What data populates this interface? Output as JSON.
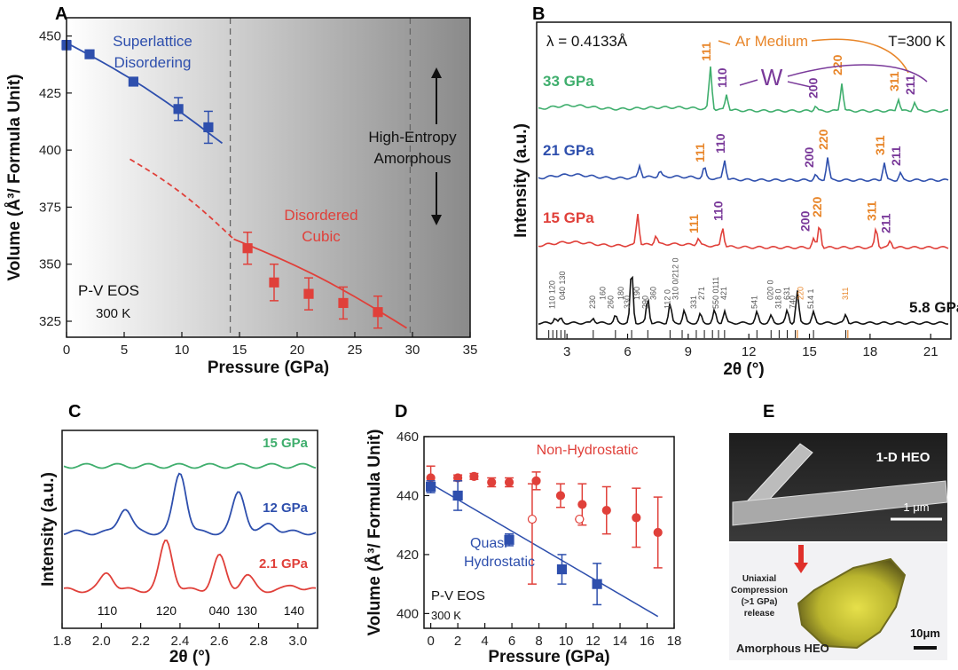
{
  "panels": {
    "a": "A",
    "b": "B",
    "c": "C",
    "d": "D",
    "e": "E"
  },
  "chart_data": [
    {
      "id": "A",
      "type": "scatter",
      "xlabel": "Pressure (GPa)",
      "ylabel": "Volume (Å³/ Formula Unit)",
      "xlim": [
        0,
        35
      ],
      "ylim": [
        318,
        458
      ],
      "xticks": [
        "0",
        "5",
        "10",
        "15",
        "20",
        "25",
        "30",
        "35"
      ],
      "yticks": [
        "325",
        "350",
        "375",
        "400",
        "425",
        "450"
      ],
      "series": [
        {
          "name": "Superlattice Disordering",
          "color": "#2e4fad",
          "x": [
            0,
            2,
            5.8,
            9.7,
            12.3
          ],
          "y": [
            446,
            442,
            430,
            418,
            410
          ],
          "err": [
            2,
            1,
            1.5,
            5,
            7
          ]
        },
        {
          "name": "Disordered Cubic",
          "color": "#e0403a",
          "x": [
            15.7,
            18,
            21,
            24,
            27
          ],
          "y": [
            357,
            342,
            337,
            333,
            329
          ],
          "err": [
            7,
            8,
            7,
            7,
            7
          ]
        }
      ],
      "fits": [
        {
          "color": "#2e4fad",
          "x": [
            0,
            13.5
          ],
          "y": [
            447,
            403
          ]
        },
        {
          "color": "#e0403a",
          "x": [
            5.5,
            14.5
          ],
          "y": [
            396,
            361
          ],
          "dashed": true
        },
        {
          "color": "#e0403a",
          "x": [
            14.5,
            29.5
          ],
          "y": [
            361,
            322
          ]
        }
      ],
      "vlines": [
        14.2,
        29.8
      ],
      "annotations": {
        "superlattice": [
          "Superlattice",
          "Disordering"
        ],
        "high_entropy": [
          "High-Entropy",
          "Amorphous"
        ],
        "disordered": [
          "Disordered",
          "Cubic"
        ],
        "eos": "P-V EOS",
        "temp": "300 K"
      }
    },
    {
      "id": "B",
      "type": "line",
      "xlabel": "2θ (°)",
      "ylabel": "Intensity (a.u.)",
      "xlim": [
        1.5,
        22
      ],
      "xticks": [
        "3",
        "6",
        "9",
        "12",
        "15",
        "18",
        "21"
      ],
      "annotations": {
        "lambda": "λ = 0.4133Å",
        "temp": "T=300 K",
        "ar_medium": "Ar Medium",
        "w": "W"
      },
      "series": [
        {
          "name": "33 GPa",
          "color": "#3fae6d",
          "offset": 0,
          "peaks": [
            {
              "x": 10.1,
              "h": 48
            },
            {
              "x": 10.9,
              "h": 18
            },
            {
              "x": 16.6,
              "h": 32
            },
            {
              "x": 19.4,
              "h": 14
            },
            {
              "x": 20.2,
              "h": 10
            },
            {
              "x": 15.3,
              "h": 6
            }
          ],
          "labels": [
            {
              "t": "111",
              "x": 10.1,
              "c": "#e8862a"
            },
            {
              "t": "110",
              "x": 10.9,
              "c": "#7a3a9a"
            },
            {
              "t": "200",
              "x": 15.4,
              "c": "#7a3a9a"
            },
            {
              "t": "220",
              "x": 16.6,
              "c": "#e8862a"
            },
            {
              "t": "311",
              "x": 19.4,
              "c": "#e8862a"
            },
            {
              "t": "211",
              "x": 20.2,
              "c": "#7a3a9a"
            }
          ]
        },
        {
          "name": "21 GPa",
          "color": "#2e4fad",
          "offset": 1,
          "peaks": [
            {
              "x": 6.6,
              "h": 14
            },
            {
              "x": 7.6,
              "h": 6
            },
            {
              "x": 9.8,
              "h": 12
            },
            {
              "x": 10.8,
              "h": 22
            },
            {
              "x": 15.3,
              "h": 6
            },
            {
              "x": 15.9,
              "h": 26
            },
            {
              "x": 18.7,
              "h": 20
            },
            {
              "x": 19.5,
              "h": 8
            }
          ],
          "labels": [
            {
              "t": "111",
              "x": 9.8,
              "c": "#e8862a"
            },
            {
              "t": "110",
              "x": 10.8,
              "c": "#7a3a9a"
            },
            {
              "t": "200",
              "x": 15.2,
              "c": "#7a3a9a"
            },
            {
              "t": "220",
              "x": 15.9,
              "c": "#e8862a"
            },
            {
              "t": "311",
              "x": 18.7,
              "c": "#e8862a"
            },
            {
              "t": "211",
              "x": 19.5,
              "c": "#7a3a9a"
            }
          ]
        },
        {
          "name": "15 GPa",
          "color": "#e0403a",
          "offset": 2,
          "peaks": [
            {
              "x": 6.5,
              "h": 36
            },
            {
              "x": 7.4,
              "h": 10
            },
            {
              "x": 9.5,
              "h": 8
            },
            {
              "x": 10.7,
              "h": 22
            },
            {
              "x": 15.2,
              "h": 10
            },
            {
              "x": 15.5,
              "h": 26
            },
            {
              "x": 18.3,
              "h": 22
            },
            {
              "x": 19.0,
              "h": 8
            }
          ],
          "labels": [
            {
              "t": "111",
              "x": 9.5,
              "c": "#e8862a"
            },
            {
              "t": "110",
              "x": 10.7,
              "c": "#7a3a9a"
            },
            {
              "t": "200",
              "x": 15.0,
              "c": "#7a3a9a"
            },
            {
              "t": "220",
              "x": 15.6,
              "c": "#e8862a"
            },
            {
              "t": "311",
              "x": 18.3,
              "c": "#e8862a"
            },
            {
              "t": "211",
              "x": 19.0,
              "c": "#7a3a9a"
            }
          ]
        },
        {
          "name": "5.8 GPa",
          "color": "#111111",
          "offset": 3,
          "peaks": [
            {
              "x": 2.4,
              "h": 6
            },
            {
              "x": 2.7,
              "h": 5
            },
            {
              "x": 4.3,
              "h": 6
            },
            {
              "x": 5.4,
              "h": 8
            },
            {
              "x": 6.2,
              "h": 60
            },
            {
              "x": 7.0,
              "h": 28
            },
            {
              "x": 8.1,
              "h": 22
            },
            {
              "x": 8.8,
              "h": 14
            },
            {
              "x": 9.6,
              "h": 10
            },
            {
              "x": 10.3,
              "h": 14
            },
            {
              "x": 10.8,
              "h": 14
            },
            {
              "x": 12.4,
              "h": 12
            },
            {
              "x": 13.1,
              "h": 8
            },
            {
              "x": 13.9,
              "h": 14
            },
            {
              "x": 14.4,
              "h": 36
            },
            {
              "x": 15.2,
              "h": 12
            },
            {
              "x": 16.8,
              "h": 10
            }
          ],
          "labels": [
            {
              "t": "110 120",
              "x": 2.4,
              "c": "#555555"
            },
            {
              "t": "040 130",
              "x": 2.9,
              "c": "#555555"
            },
            {
              "t": "230",
              "x": 4.4,
              "c": "#555555"
            },
            {
              "t": "160",
              "x": 4.9,
              "c": "#555555"
            },
            {
              "t": "260",
              "x": 5.3,
              "c": "#555555"
            },
            {
              "t": "180",
              "x": 5.8,
              "c": "#555555"
            },
            {
              "t": "330",
              "x": 6.1,
              "c": "#555555"
            },
            {
              "t": "190",
              "x": 6.6,
              "c": "#555555"
            },
            {
              "t": "290",
              "x": 7.0,
              "c": "#555555"
            },
            {
              "t": "360",
              "x": 7.4,
              "c": "#555555"
            },
            {
              "t": "112 0",
              "x": 8.1,
              "c": "#555555"
            },
            {
              "t": "310 0/212 0",
              "x": 8.5,
              "c": "#555555"
            },
            {
              "t": "331",
              "x": 9.4,
              "c": "#555555"
            },
            {
              "t": "271",
              "x": 9.8,
              "c": "#555555"
            },
            {
              "t": "550 0111",
              "x": 10.5,
              "c": "#555555"
            },
            {
              "t": "421",
              "x": 10.9,
              "c": "#555555"
            },
            {
              "t": "541",
              "x": 12.4,
              "c": "#555555"
            },
            {
              "t": "020 0",
              "x": 13.2,
              "c": "#555555"
            },
            {
              "t": "318 0",
              "x": 13.6,
              "c": "#555555"
            },
            {
              "t": "631",
              "x": 14.0,
              "c": "#555555"
            },
            {
              "t": "740",
              "x": 14.3,
              "c": "#555555"
            },
            {
              "t": "220",
              "x": 14.7,
              "c": "#e8862a"
            },
            {
              "t": "514 1",
              "x": 15.2,
              "c": "#555555"
            },
            {
              "t": "311",
              "x": 16.9,
              "c": "#e8862a"
            }
          ]
        }
      ],
      "ref_ticks": [
        2.1,
        2.3,
        2.5,
        2.7,
        2.9,
        4.3,
        5.4,
        6.2,
        7.0,
        8.1,
        8.7,
        9.4,
        9.8,
        10.2,
        10.5,
        10.8,
        12.4,
        13.1,
        13.5,
        13.9,
        14.3,
        15.2,
        16.8
      ],
      "ref_ticks_orange": [
        14.4,
        16.9
      ]
    },
    {
      "id": "C",
      "type": "line",
      "xlabel": "2θ (°)",
      "ylabel": "Intensity (a.u.)",
      "xlim": [
        1.8,
        3.1
      ],
      "xticks": [
        "1.8",
        "2.0",
        "2.2",
        "2.4",
        "2.6",
        "2.8",
        "3.0"
      ],
      "hkl": [
        {
          "t": "110",
          "x": 2.03
        },
        {
          "t": "120",
          "x": 2.33
        },
        {
          "t": "040",
          "x": 2.6
        },
        {
          "t": "130",
          "x": 2.74
        },
        {
          "t": "140",
          "x": 2.98
        }
      ],
      "series": [
        {
          "name": "15 GPa",
          "color": "#3fae6d",
          "peaks": []
        },
        {
          "name": "12 GPa",
          "color": "#2e4fad",
          "peaks": [
            {
              "x": 2.12,
              "h": 28
            },
            {
              "x": 2.4,
              "h": 68
            },
            {
              "x": 2.7,
              "h": 46
            },
            {
              "x": 2.86,
              "h": 10
            }
          ]
        },
        {
          "name": "2.1 GPa",
          "color": "#e0403a",
          "peaks": [
            {
              "x": 2.03,
              "h": 20
            },
            {
              "x": 2.33,
              "h": 56
            },
            {
              "x": 2.6,
              "h": 38
            },
            {
              "x": 2.74,
              "h": 16
            },
            {
              "x": 2.98,
              "h": 6
            }
          ]
        }
      ]
    },
    {
      "id": "D",
      "type": "scatter",
      "xlabel": "Pressure (GPa)",
      "ylabel": "Volume (Å³/ Formula Unit)",
      "xlim": [
        -0.5,
        18
      ],
      "ylim": [
        395,
        460
      ],
      "xticks": [
        "0",
        "2",
        "4",
        "6",
        "8",
        "10",
        "12",
        "14",
        "16",
        "18"
      ],
      "yticks": [
        "400",
        "420",
        "440",
        "460"
      ],
      "series": [
        {
          "name": "Non-Hydrostatic",
          "color": "#e0403a",
          "x": [
            0,
            2,
            3.2,
            4.5,
            5.8,
            7.8,
            9.6,
            11.2,
            13,
            15.2,
            16.8
          ],
          "y": [
            446,
            446,
            446.5,
            444.5,
            444.5,
            445,
            440,
            437,
            435,
            432.5,
            427.5
          ],
          "err": [
            4,
            1,
            1,
            1.5,
            1.5,
            3,
            4,
            7,
            8,
            10,
            12
          ]
        },
        {
          "name": "Non-Hydrostatic open",
          "color": "#e0403a",
          "open": true,
          "x": [
            7.5,
            11.0
          ],
          "y": [
            432,
            432
          ],
          "err_lo": [
            22,
            0
          ],
          "err_hi": [
            12,
            0
          ]
        },
        {
          "name": "Quasi-Hydrostatic",
          "color": "#2e4fad",
          "x": [
            0,
            2,
            5.8,
            9.7,
            12.3
          ],
          "y": [
            443,
            440,
            425,
            415,
            410
          ],
          "err": [
            2,
            5,
            2,
            5,
            7
          ]
        }
      ],
      "fit": {
        "color": "#2e4fad",
        "x": [
          0,
          16.8
        ],
        "y": [
          444,
          399
        ]
      },
      "annotations": {
        "nonhydro": "Non-Hydrostatic",
        "quasi": [
          "Quasi-",
          "Hydrostatic"
        ],
        "eos": "P-V EOS",
        "temp": "300 K"
      }
    }
  ],
  "panel_e": {
    "label_top": "1-D HEO",
    "scale_top": "1 μm",
    "compression": [
      "Uniaxial",
      "Compression",
      "(>1 GPa)",
      "release"
    ],
    "label_bottom": "Amorphous HEO",
    "scale_bottom": "10μm"
  }
}
